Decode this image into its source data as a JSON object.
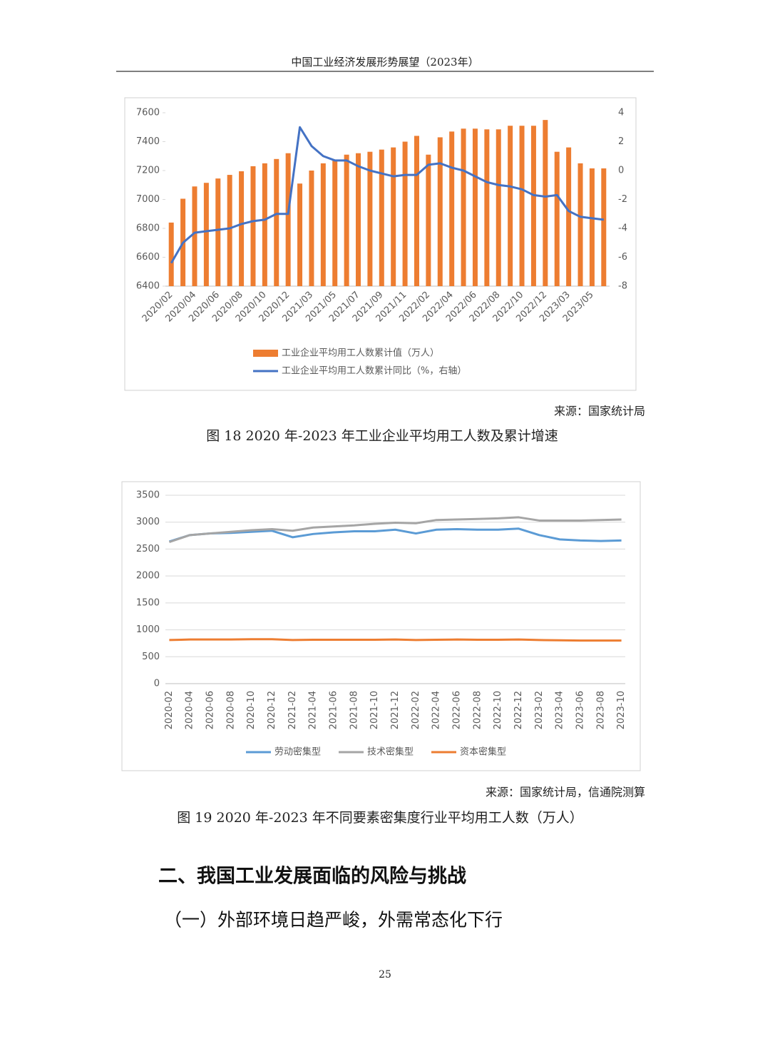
{
  "header": "中国工业经济发展形势展望（2023年）",
  "chart_data": [
    {
      "type": "bar",
      "categories": [
        "2020/02",
        null,
        "2020/04",
        null,
        "2020/06",
        null,
        "2020/08",
        null,
        "2020/10",
        null,
        "2020/12",
        null,
        "2021/03",
        null,
        "2021/05",
        null,
        "2021/07",
        null,
        "2021/09",
        null,
        "2021/11",
        null,
        "2022/02",
        null,
        "2022/04",
        null,
        "2022/06",
        null,
        "2022/08",
        null,
        "2022/10",
        null,
        "2022/12",
        null,
        "2023/03",
        null,
        "2023/05",
        null
      ],
      "series": [
        {
          "name": "工业企业平均用工人数累计值（万人）",
          "color": "#ed7d31",
          "type": "bar",
          "values": [
            6840,
            7005,
            7090,
            7115,
            7145,
            7170,
            7195,
            7230,
            7250,
            7280,
            7320,
            7110,
            7200,
            7250,
            7270,
            7310,
            7320,
            7330,
            7345,
            7360,
            7400,
            7440,
            7310,
            7430,
            7470,
            7490,
            7490,
            7485,
            7485,
            7510,
            7510,
            7510,
            7550,
            7330,
            7360,
            7250,
            7215,
            7215
          ]
        },
        {
          "name": "工业企业平均用工人数累计同比（%，右轴）",
          "color": "#4472c4",
          "type": "line",
          "axis": "y2",
          "values": [
            -6.4,
            -5.0,
            -4.3,
            -4.2,
            -4.1,
            -4.0,
            -3.7,
            -3.5,
            -3.4,
            -3.0,
            -3.0,
            3.0,
            1.7,
            1.0,
            0.7,
            0.7,
            0.3,
            0.0,
            -0.2,
            -0.4,
            -0.3,
            -0.3,
            0.4,
            0.5,
            0.2,
            0.0,
            -0.4,
            -0.8,
            -1.0,
            -1.1,
            -1.3,
            -1.7,
            -1.8,
            -1.7,
            -2.8,
            -3.2,
            -3.3,
            -3.4
          ]
        }
      ],
      "ylim": [
        6400,
        7600
      ],
      "yticks": [
        6400,
        6600,
        6800,
        7000,
        7200,
        7400,
        7600
      ],
      "y2lim": [
        -8,
        4
      ],
      "y2ticks": [
        -8,
        -6,
        -4,
        -2,
        0,
        2,
        4
      ],
      "grid": false,
      "legend": "bottom"
    },
    {
      "type": "line",
      "categories": [
        "2020-02",
        "2020-04",
        "2020-06",
        "2020-08",
        "2020-10",
        "2020-12",
        "2021-02",
        "2021-04",
        "2021-06",
        "2021-08",
        "2021-10",
        "2021-12",
        "2022-02",
        "2022-04",
        "2022-06",
        "2022-08",
        "2022-10",
        "2022-12",
        "2023-02",
        "2023-04",
        "2023-06",
        "2023-08",
        "2023-10"
      ],
      "series": [
        {
          "name": "劳动密集型",
          "color": "#5b9bd5",
          "values": [
            2640,
            2760,
            2790,
            2800,
            2820,
            2840,
            2720,
            2780,
            2810,
            2830,
            2830,
            2860,
            2790,
            2860,
            2870,
            2860,
            2860,
            2880,
            2760,
            2680,
            2660,
            2650,
            2660
          ]
        },
        {
          "name": "技术密集型",
          "color": "#a5a5a5",
          "values": [
            2630,
            2760,
            2790,
            2820,
            2850,
            2870,
            2840,
            2900,
            2920,
            2940,
            2970,
            2990,
            2980,
            3040,
            3050,
            3060,
            3070,
            3090,
            3030,
            3030,
            3030,
            3040,
            3050
          ]
        },
        {
          "name": "资本密集型",
          "color": "#ed7d31",
          "values": [
            810,
            820,
            820,
            820,
            825,
            825,
            810,
            815,
            815,
            815,
            815,
            820,
            810,
            815,
            820,
            815,
            815,
            820,
            810,
            805,
            800,
            800,
            800
          ]
        }
      ],
      "ylim": [
        0,
        3500
      ],
      "yticks": [
        0,
        500,
        1000,
        1500,
        2000,
        2500,
        3000,
        3500
      ],
      "grid": true,
      "legend": "bottom"
    }
  ],
  "figures": [
    {
      "source": "来源：国家统计局",
      "caption": "图 18 2020 年-2023 年工业企业平均用工人数及累计增速"
    },
    {
      "source": "来源：国家统计局，信通院测算",
      "caption": "图 19 2020 年-2023 年不同要素密集度行业平均用工人数（万人）"
    }
  ],
  "heading": "二、我国工业发展面临的风险与挑战",
  "subheading": "（一）外部环境日趋严峻，外需常态化下行",
  "page_number": "25"
}
